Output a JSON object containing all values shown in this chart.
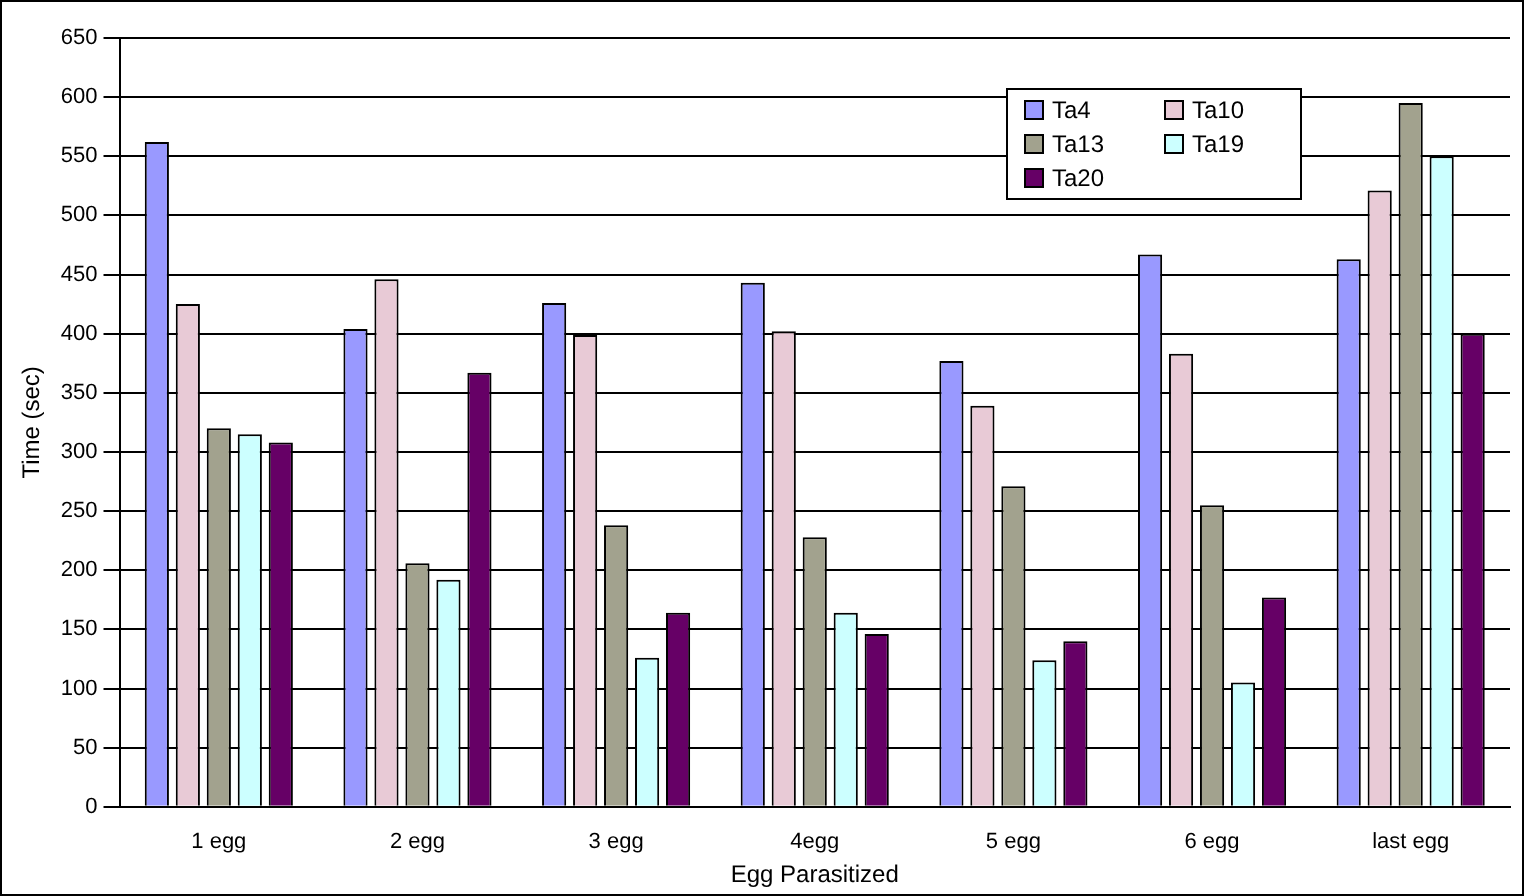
{
  "chart_data": {
    "type": "bar",
    "xlabel": "Egg Parasitized",
    "ylabel": "Time (sec)",
    "categories": [
      "1 egg",
      "2 egg",
      "3 egg",
      "4egg",
      "5 egg",
      "6 egg",
      "last egg"
    ],
    "series": [
      {
        "name": "Ta4",
        "color": "#9999ff",
        "values": [
          562,
          404,
          426,
          443,
          377,
          467,
          463
        ]
      },
      {
        "name": "Ta10",
        "color": "#e8cad6",
        "values": [
          425,
          446,
          399,
          402,
          339,
          383,
          521
        ]
      },
      {
        "name": "Ta13",
        "color": "#a2a28e",
        "values": [
          320,
          206,
          238,
          228,
          271,
          255,
          595
        ]
      },
      {
        "name": "Ta19",
        "color": "#ccffff",
        "values": [
          315,
          192,
          126,
          164,
          124,
          105,
          550
        ]
      },
      {
        "name": "Ta20",
        "color": "#660066",
        "values": [
          308,
          367,
          164,
          146,
          140,
          177,
          400
        ]
      }
    ],
    "ylim": [
      0,
      650
    ],
    "yticks": [
      0,
      50,
      100,
      150,
      200,
      250,
      300,
      350,
      400,
      450,
      500,
      550,
      600,
      650
    ],
    "grid": "y",
    "legend": "top right"
  }
}
